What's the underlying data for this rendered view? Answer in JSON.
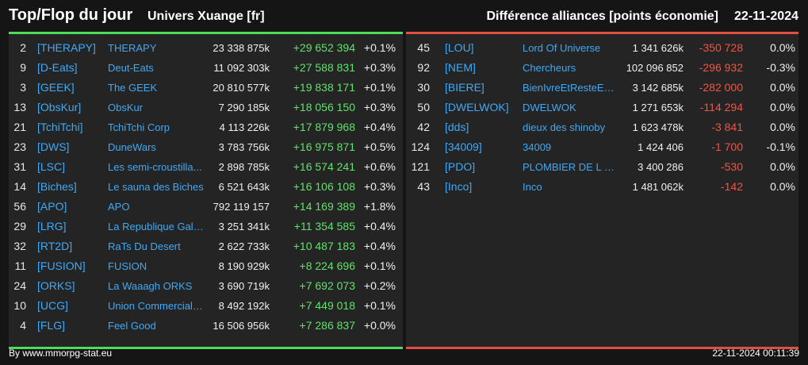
{
  "header": {
    "title": "Top/Flop du jour",
    "universe": "Univers Xuange [fr]",
    "subtitle": "Différence alliances [points économie]",
    "date": "22-11-2024"
  },
  "colors": {
    "gain": "#5fe36a",
    "loss": "#f05545",
    "link": "#3fa9f5",
    "top_border": "#4cdd5a",
    "flop_border": "#e05040"
  },
  "top": [
    {
      "rank": "2",
      "tag": "[THERAPY]",
      "name": "THERAPY",
      "points": "23 338 875k",
      "diff": "+29 652 394",
      "pct": "+0.1%"
    },
    {
      "rank": "9",
      "tag": "[D-Eats]",
      "name": "Deut-Eats",
      "points": "11 092 303k",
      "diff": "+27 588 831",
      "pct": "+0.3%"
    },
    {
      "rank": "3",
      "tag": "[GEEK]",
      "name": "The GEEK",
      "points": "20 810 577k",
      "diff": "+19 838 171",
      "pct": "+0.1%"
    },
    {
      "rank": "13",
      "tag": "[ObsKur]",
      "name": "ObsKur",
      "points": "7 290 185k",
      "diff": "+18 056 150",
      "pct": "+0.3%"
    },
    {
      "rank": "21",
      "tag": "[TchiTchi]",
      "name": "TchiTchi Corp",
      "points": "4 113 226k",
      "diff": "+17 879 968",
      "pct": "+0.4%"
    },
    {
      "rank": "23",
      "tag": "[DWS]",
      "name": "DuneWars",
      "points": "3 783 756k",
      "diff": "+16 975 871",
      "pct": "+0.5%"
    },
    {
      "rank": "31",
      "tag": "[LSC]",
      "name": "Les semi-croustilla...",
      "points": "2 898 785k",
      "diff": "+16 574 241",
      "pct": "+0.6%"
    },
    {
      "rank": "14",
      "tag": "[Biches]",
      "name": "Le sauna des Biches",
      "points": "6 521 643k",
      "diff": "+16 106 108",
      "pct": "+0.3%"
    },
    {
      "rank": "56",
      "tag": "[APO]",
      "name": "APO",
      "points": "792 119 157",
      "diff": "+14 169 389",
      "pct": "+1.8%"
    },
    {
      "rank": "29",
      "tag": "[LRG]",
      "name": "La Republique Gala...",
      "points": "3 251 341k",
      "diff": "+11 354 585",
      "pct": "+0.4%"
    },
    {
      "rank": "32",
      "tag": "[RT2D]",
      "name": "RaTs Du Desert",
      "points": "2 622 733k",
      "diff": "+10 487 183",
      "pct": "+0.4%"
    },
    {
      "rank": "11",
      "tag": "[FUSION]",
      "name": "FUSION",
      "points": "8 190 929k",
      "diff": "+8 224 696",
      "pct": "+0.1%"
    },
    {
      "rank": "24",
      "tag": "[ORKS]",
      "name": "La Waaagh ORKS",
      "points": "3 690 719k",
      "diff": "+7 692 073",
      "pct": "+0.2%"
    },
    {
      "rank": "10",
      "tag": "[UCG]",
      "name": "Union Commerciale...",
      "points": "8 492 192k",
      "diff": "+7 449 018",
      "pct": "+0.1%"
    },
    {
      "rank": "4",
      "tag": "[FLG]",
      "name": "Feel Good",
      "points": "16 506 956k",
      "diff": "+7 286 837",
      "pct": "+0.0%"
    }
  ],
  "flop": [
    {
      "rank": "45",
      "tag": "[LOU]",
      "name": "Lord Of Universe",
      "points": "1 341 626k",
      "diff": "-350 728",
      "pct": "0.0%"
    },
    {
      "rank": "92",
      "tag": "[NEM]",
      "name": "Chercheurs",
      "points": "102 096 852",
      "diff": "-296 932",
      "pct": "-0.3%"
    },
    {
      "rank": "30",
      "tag": "[BIERE]",
      "name": "BienIvreEtResteECU",
      "points": "3 142 685k",
      "diff": "-282 000",
      "pct": "0.0%"
    },
    {
      "rank": "50",
      "tag": "[DWELWOK]",
      "name": "DWELWOK",
      "points": "1 271 653k",
      "diff": "-114 294",
      "pct": "0.0%"
    },
    {
      "rank": "42",
      "tag": "[dds]",
      "name": "dieux des shinoby",
      "points": "1 623 478k",
      "diff": "-3 841",
      "pct": "0.0%"
    },
    {
      "rank": "124",
      "tag": "[34009]",
      "name": "34009",
      "points": "1 424 406",
      "diff": "-1 700",
      "pct": "-0.1%"
    },
    {
      "rank": "121",
      "tag": "[PDO]",
      "name": "PLOMBIER DE L O...",
      "points": "3 400 286",
      "diff": "-530",
      "pct": "0.0%"
    },
    {
      "rank": "43",
      "tag": "[Inco]",
      "name": "Inco",
      "points": "1 481 062k",
      "diff": "-142",
      "pct": "0.0%"
    }
  ],
  "footer": {
    "source": "By www.mmorpg-stat.eu",
    "timestamp": "22-11-2024 00:11:39"
  }
}
